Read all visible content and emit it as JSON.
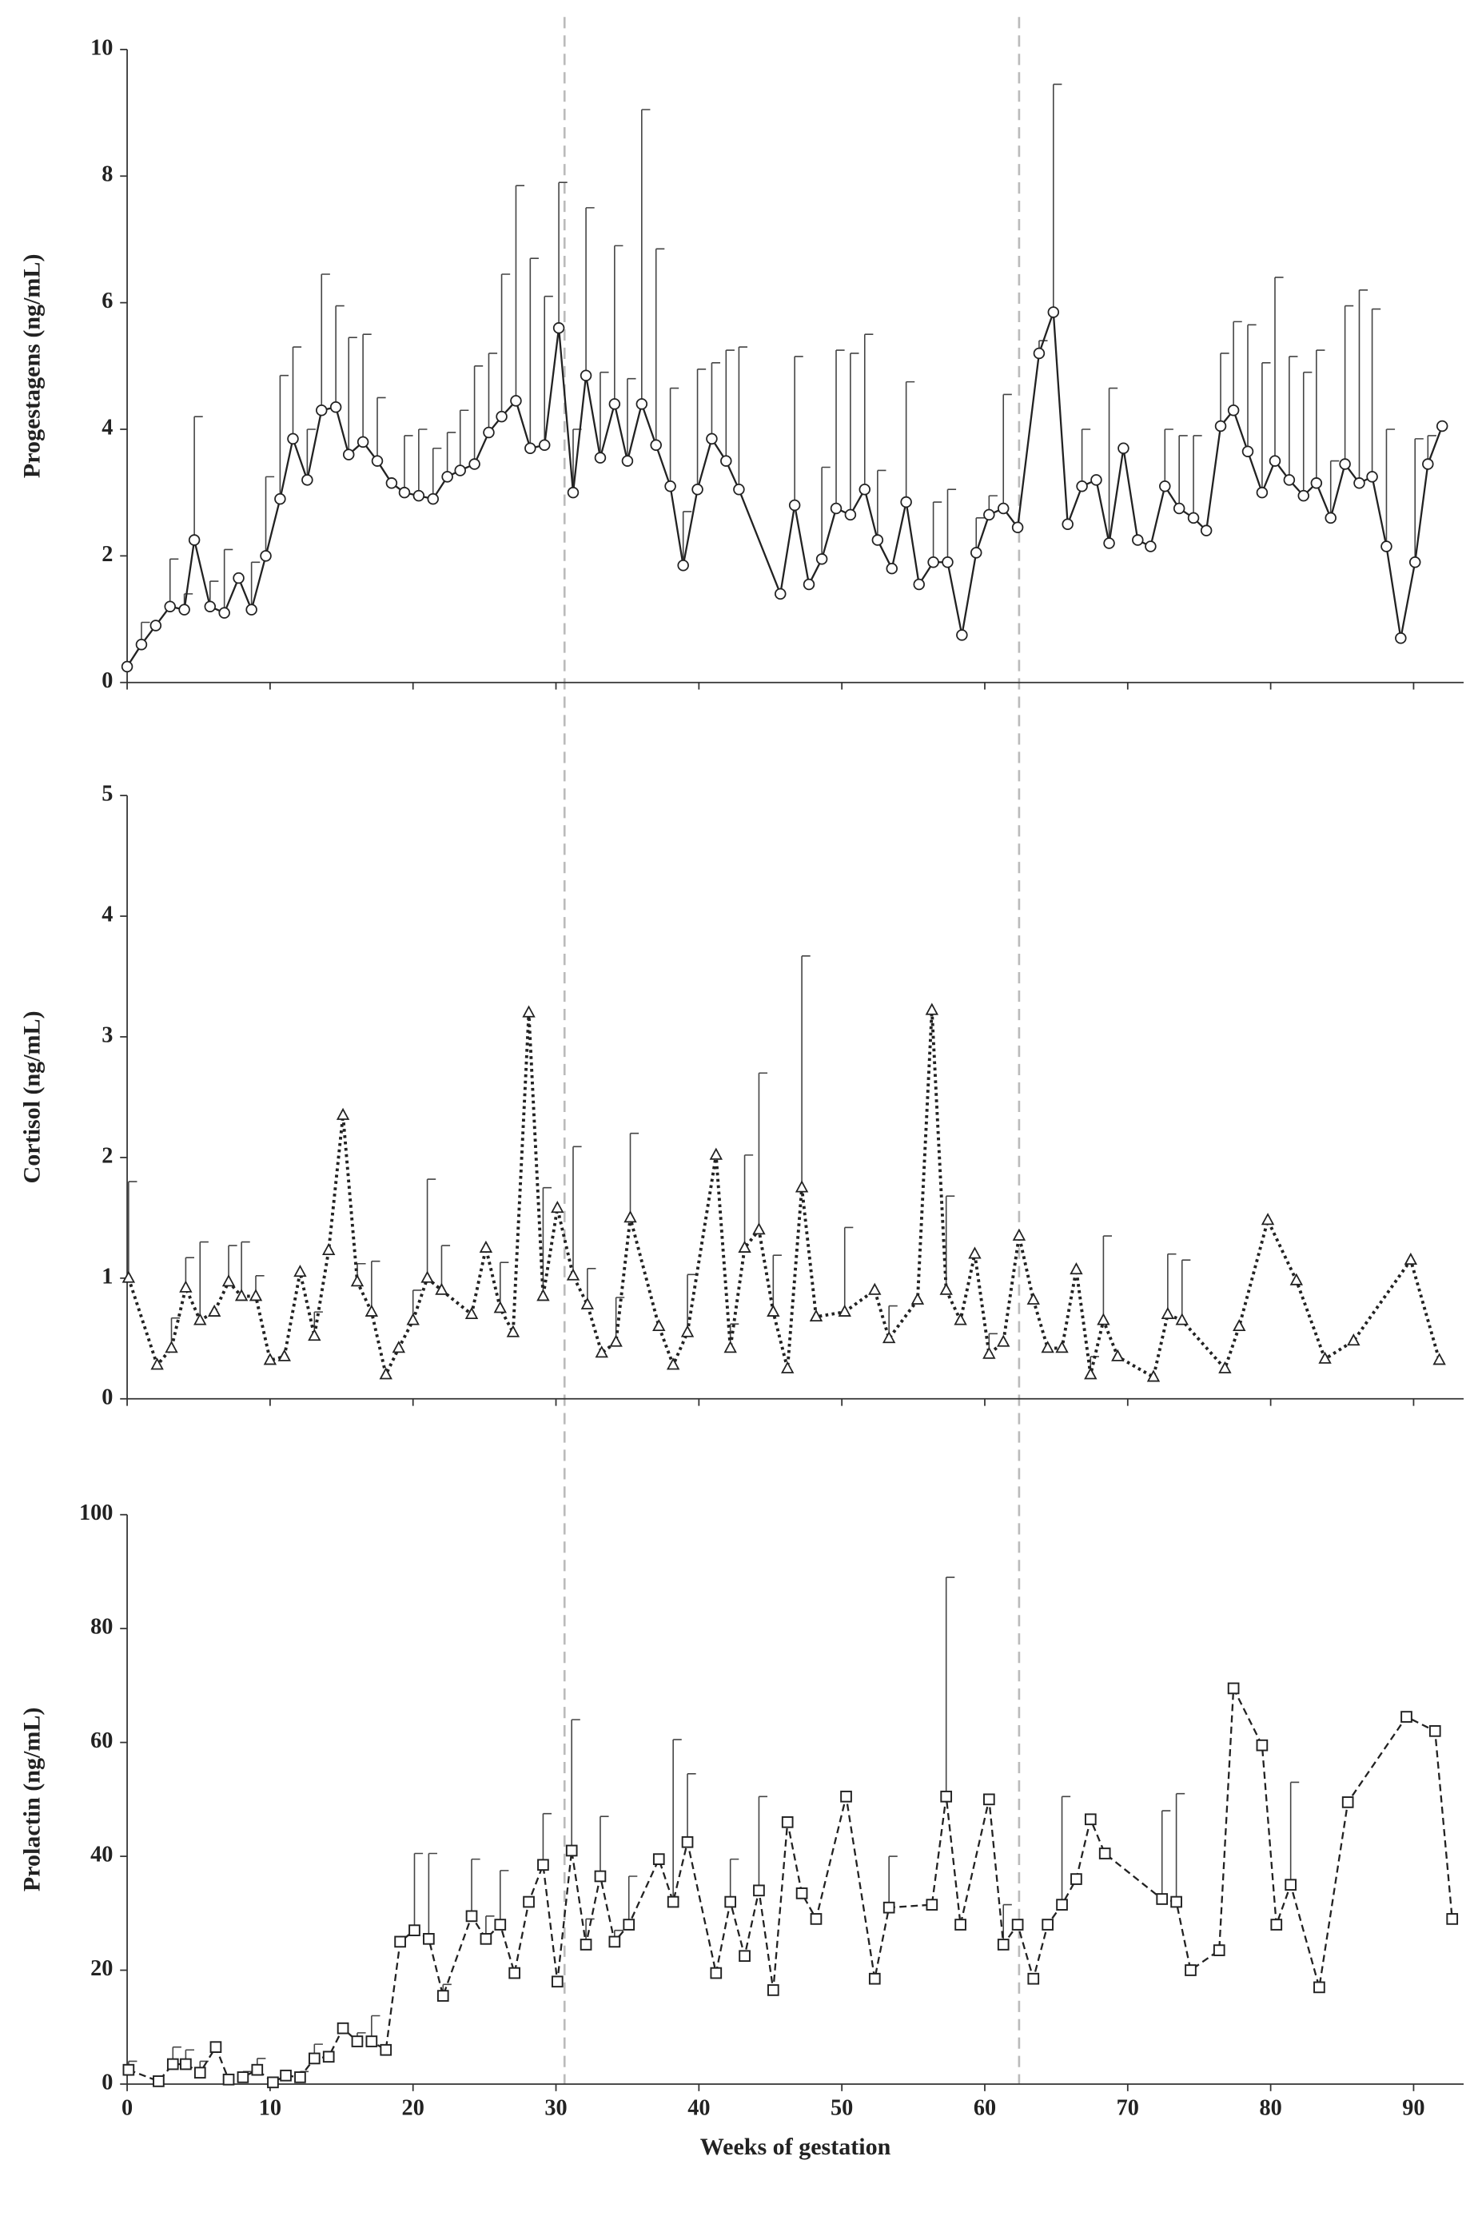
{
  "chart_data": [
    {
      "type": "line",
      "ylabel": "Progestagens (ng/mL)",
      "marker": "circle",
      "line_style": "solid",
      "ylim": [
        0,
        10
      ],
      "yticks": [
        0,
        2,
        4,
        6,
        8,
        10
      ],
      "xlim": [
        0,
        93.5
      ],
      "x": [
        0,
        1,
        2,
        3,
        4,
        4.7,
        5.8,
        6.8,
        7.8,
        8.7,
        9.7,
        10.7,
        11.6,
        12.6,
        13.6,
        14.6,
        15.5,
        16.5,
        17.5,
        18.5,
        19.4,
        20.4,
        21.4,
        22.4,
        23.3,
        24.3,
        25.3,
        26.2,
        27.2,
        28.2,
        29.2,
        30.2,
        31.2,
        32.1,
        33.1,
        34.1,
        35.0,
        36.0,
        37.0,
        38.0,
        38.9,
        39.9,
        40.9,
        41.9,
        42.8,
        45.7,
        46.7,
        47.7,
        48.6,
        49.6,
        50.6,
        51.6,
        52.5,
        53.5,
        54.5,
        55.4,
        56.4,
        57.4,
        58.4,
        59.4,
        60.3,
        61.3,
        62.3,
        63.8,
        64.8,
        65.8,
        66.8,
        67.8,
        68.7,
        69.7,
        70.7,
        71.6,
        72.6,
        73.6,
        74.6,
        75.5,
        76.5,
        77.4,
        78.4,
        79.4,
        80.3,
        81.3,
        82.3,
        83.2,
        84.2,
        85.2,
        86.2,
        87.1,
        88.1,
        89.1,
        90.1,
        91.0,
        92.0
      ],
      "values": [
        0.25,
        0.6,
        0.9,
        1.2,
        1.15,
        2.25,
        1.2,
        1.1,
        1.65,
        1.15,
        2.0,
        2.9,
        3.85,
        3.2,
        4.3,
        4.35,
        3.6,
        3.8,
        3.5,
        3.15,
        3.0,
        2.95,
        2.9,
        3.25,
        3.35,
        3.45,
        3.95,
        4.2,
        4.45,
        3.7,
        3.75,
        5.6,
        3.0,
        4.85,
        3.55,
        4.4,
        3.5,
        4.4,
        3.75,
        3.1,
        1.85,
        3.05,
        3.85,
        3.5,
        3.05,
        1.4,
        2.8,
        1.55,
        1.95,
        2.75,
        2.65,
        3.05,
        2.25,
        1.8,
        2.85,
        1.55,
        1.9,
        1.9,
        0.75,
        2.05,
        2.65,
        2.75,
        2.45,
        5.2,
        5.85,
        2.5,
        3.1,
        3.2,
        2.2,
        3.7,
        2.25,
        2.15,
        3.1,
        2.75,
        2.6,
        2.4,
        4.05,
        4.3,
        3.65,
        3.0,
        3.5,
        3.2,
        2.95,
        3.15,
        2.6,
        3.45,
        3.15,
        3.25,
        2.15,
        0.7,
        1.9,
        3.45,
        4.05
      ],
      "errors": [
        null,
        0.35,
        null,
        0.75,
        0.25,
        1.95,
        0.4,
        1.0,
        null,
        0.75,
        1.25,
        1.95,
        1.45,
        0.8,
        2.15,
        1.6,
        1.85,
        1.7,
        1.0,
        null,
        0.9,
        1.05,
        0.8,
        0.7,
        0.95,
        1.55,
        1.25,
        2.25,
        3.4,
        3.0,
        2.35,
        2.3,
        1.0,
        2.65,
        1.35,
        2.5,
        1.3,
        4.65,
        3.1,
        1.55,
        0.85,
        1.9,
        1.2,
        1.75,
        2.25,
        null,
        2.35,
        null,
        1.45,
        2.5,
        2.55,
        2.45,
        1.1,
        null,
        1.9,
        null,
        0.95,
        1.15,
        null,
        0.55,
        0.3,
        1.8,
        null,
        0.2,
        3.6,
        null,
        0.9,
        null,
        2.45,
        null,
        null,
        null,
        0.9,
        1.15,
        1.3,
        null,
        1.15,
        1.4,
        2.0,
        2.05,
        2.9,
        1.95,
        1.95,
        2.1,
        0.9,
        2.5,
        3.05,
        2.65,
        1.85,
        null,
        1.95,
        0.45,
        null
      ]
    },
    {
      "type": "line",
      "ylabel": "Cortisol (ng/mL)",
      "marker": "triangle",
      "line_style": "dotted",
      "ylim": [
        0,
        5
      ],
      "yticks": [
        0,
        1,
        2,
        3,
        4,
        5
      ],
      "xlim": [
        0,
        93.5
      ],
      "x": [
        0.1,
        2.1,
        3.1,
        4.1,
        5.1,
        6.1,
        7.1,
        8.0,
        9.0,
        10.0,
        11.0,
        12.1,
        13.1,
        14.1,
        15.1,
        16.1,
        17.1,
        18.1,
        19.0,
        20.0,
        21.0,
        22.0,
        24.1,
        25.1,
        26.1,
        27.0,
        28.1,
        29.1,
        30.1,
        31.2,
        32.2,
        33.2,
        34.2,
        35.2,
        37.2,
        38.2,
        39.2,
        41.2,
        42.2,
        43.2,
        44.2,
        45.2,
        46.2,
        47.2,
        48.2,
        50.2,
        52.3,
        53.3,
        55.3,
        56.3,
        57.3,
        58.3,
        59.3,
        60.3,
        61.3,
        62.4,
        63.4,
        64.4,
        65.4,
        66.4,
        67.4,
        68.3,
        69.3,
        71.8,
        72.8,
        73.8,
        76.8,
        77.8,
        79.8,
        81.8,
        83.8,
        85.8,
        89.8,
        91.8
      ],
      "values": [
        1.0,
        0.28,
        0.42,
        0.92,
        0.65,
        0.72,
        0.97,
        0.85,
        0.85,
        0.32,
        0.35,
        1.05,
        0.52,
        1.23,
        2.35,
        0.97,
        0.72,
        0.2,
        0.42,
        0.65,
        1.0,
        0.9,
        0.7,
        1.25,
        0.75,
        0.55,
        3.2,
        0.85,
        1.58,
        1.02,
        0.78,
        0.38,
        0.47,
        1.5,
        0.6,
        0.28,
        0.55,
        2.02,
        0.42,
        1.25,
        1.4,
        0.72,
        0.25,
        1.75,
        0.68,
        0.72,
        0.9,
        0.5,
        0.82,
        3.22,
        0.9,
        0.65,
        1.2,
        0.37,
        0.47,
        1.35,
        0.82,
        0.42,
        0.42,
        1.07,
        0.2,
        0.65,
        0.35,
        0.18,
        0.7,
        0.65,
        0.25,
        0.6,
        1.48,
        0.98,
        0.33,
        0.48,
        1.15,
        0.32
      ],
      "errors": [
        0.8,
        null,
        0.25,
        0.25,
        0.65,
        null,
        0.3,
        0.45,
        0.17,
        null,
        null,
        null,
        0.2,
        null,
        null,
        0.15,
        0.42,
        null,
        null,
        0.25,
        0.82,
        0.37,
        null,
        null,
        0.38,
        null,
        null,
        0.9,
        null,
        1.07,
        0.3,
        null,
        0.37,
        0.7,
        null,
        null,
        0.48,
        null,
        0.2,
        0.77,
        1.3,
        0.47,
        null,
        1.92,
        null,
        0.7,
        null,
        0.27,
        null,
        null,
        0.78,
        null,
        null,
        0.17,
        null,
        null,
        null,
        null,
        null,
        null,
        0.15,
        0.7,
        null,
        null,
        0.5,
        0.5,
        null,
        null,
        null,
        null,
        null,
        null,
        null,
        null
      ]
    },
    {
      "type": "line",
      "ylabel": "Prolactin (ng/mL)",
      "xlabel": "Weeks of gestation",
      "marker": "square",
      "line_style": "dashed",
      "ylim": [
        0,
        100
      ],
      "yticks": [
        0,
        20,
        40,
        60,
        80,
        100
      ],
      "xlim": [
        0,
        93.5
      ],
      "xticks": [
        0,
        10,
        20,
        30,
        40,
        50,
        60,
        70,
        80,
        90
      ],
      "reference_lines": [
        30.6,
        62.4
      ],
      "x": [
        0.1,
        2.2,
        3.2,
        4.1,
        5.1,
        6.2,
        7.1,
        8.1,
        9.1,
        10.2,
        11.1,
        12.1,
        13.1,
        14.1,
        15.1,
        16.1,
        17.1,
        18.1,
        19.1,
        20.1,
        21.1,
        22.1,
        24.1,
        25.1,
        26.1,
        27.1,
        28.1,
        29.1,
        30.1,
        31.1,
        32.1,
        33.1,
        34.1,
        35.1,
        37.2,
        38.2,
        39.2,
        41.2,
        42.2,
        43.2,
        44.2,
        45.2,
        46.2,
        47.2,
        48.2,
        50.3,
        52.3,
        53.3,
        56.3,
        57.3,
        58.3,
        60.3,
        61.3,
        62.3,
        63.4,
        64.4,
        65.4,
        66.4,
        67.4,
        68.4,
        72.4,
        73.4,
        74.4,
        76.4,
        77.4,
        79.4,
        80.4,
        81.4,
        83.4,
        85.4,
        89.5,
        91.5,
        92.7
      ],
      "values": [
        2.5,
        0.5,
        3.5,
        3.5,
        2,
        6.5,
        0.8,
        1.2,
        2.5,
        0.3,
        1.5,
        1.2,
        4.5,
        4.8,
        9.8,
        7.5,
        7.5,
        6,
        25,
        27,
        25.5,
        15.5,
        29.5,
        25.5,
        28,
        19.5,
        32,
        38.5,
        18,
        41,
        24.5,
        36.5,
        25,
        28,
        39.5,
        32,
        42.5,
        19.5,
        32,
        22.5,
        34,
        16.5,
        46,
        33.5,
        29,
        50.5,
        18.5,
        31,
        31.5,
        50.5,
        28,
        50,
        24.5,
        28,
        18.5,
        28,
        31.5,
        36,
        46.5,
        40.5,
        32.5,
        32,
        20,
        23.5,
        69.5,
        59.5,
        28,
        35,
        17,
        49.5,
        64.5,
        62,
        29
      ],
      "errors": [
        1.5,
        null,
        3,
        2.5,
        2,
        null,
        null,
        1,
        2,
        null,
        null,
        1,
        2.5,
        null,
        null,
        1.5,
        4.5,
        null,
        null,
        13.5,
        15,
        2,
        10,
        4,
        9.5,
        null,
        null,
        9,
        null,
        23,
        4.5,
        10.5,
        2,
        8.5,
        null,
        28.5,
        12,
        null,
        7.5,
        null,
        16.5,
        null,
        null,
        null,
        null,
        null,
        null,
        9,
        null,
        38.5,
        null,
        null,
        7,
        null,
        null,
        null,
        19,
        null,
        null,
        null,
        15.5,
        19,
        null,
        null,
        null,
        null,
        null,
        18,
        null,
        null,
        null,
        null,
        null
      ]
    }
  ]
}
